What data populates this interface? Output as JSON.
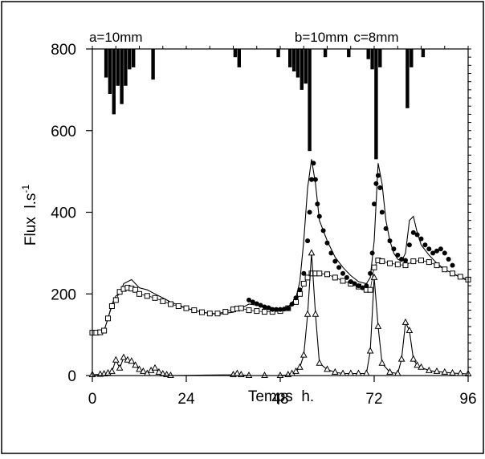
{
  "chart_data": {
    "type": "line",
    "title": "",
    "xlabel": "Temps  h.",
    "ylabel": "Flux  l.s",
    "ylabel_superscript": "-1",
    "xlim": [
      0,
      96
    ],
    "ylim": [
      0,
      800
    ],
    "x_ticks": [
      0,
      24,
      48,
      72,
      96
    ],
    "y_ticks": [
      0,
      200,
      400,
      600,
      800
    ],
    "grid": false,
    "annotations": [
      {
        "text": "a=10mm",
        "x": 6
      },
      {
        "text": "b=10mm",
        "x": 58.5
      },
      {
        "text": "c=8mm",
        "x": 72.5
      }
    ],
    "rain_bars": [
      {
        "x": 3.5,
        "depth": 70
      },
      {
        "x": 4.5,
        "depth": 110
      },
      {
        "x": 5.5,
        "depth": 160
      },
      {
        "x": 6.5,
        "depth": 90
      },
      {
        "x": 7.5,
        "depth": 135
      },
      {
        "x": 8.5,
        "depth": 90
      },
      {
        "x": 9.5,
        "depth": 50
      },
      {
        "x": 10.5,
        "depth": 45
      },
      {
        "x": 15.5,
        "depth": 75
      },
      {
        "x": 36.5,
        "depth": 20
      },
      {
        "x": 37.5,
        "depth": 45
      },
      {
        "x": 47.5,
        "depth": 20
      },
      {
        "x": 50.5,
        "depth": 45
      },
      {
        "x": 51.5,
        "depth": 55
      },
      {
        "x": 52.5,
        "depth": 70
      },
      {
        "x": 53.5,
        "depth": 100
      },
      {
        "x": 54.5,
        "depth": 85
      },
      {
        "x": 55.5,
        "depth": 250
      },
      {
        "x": 59.5,
        "depth": 20
      },
      {
        "x": 65.5,
        "depth": 20
      },
      {
        "x": 70.5,
        "depth": 25
      },
      {
        "x": 71.5,
        "depth": 50
      },
      {
        "x": 72.5,
        "depth": 270
      },
      {
        "x": 73.5,
        "depth": 45
      },
      {
        "x": 80.5,
        "depth": 145
      },
      {
        "x": 81.5,
        "depth": 45
      },
      {
        "x": 84.5,
        "depth": 20
      }
    ],
    "series": [
      {
        "marker": "line",
        "x": [
          0,
          2,
          3,
          4,
          5,
          6,
          7,
          8,
          9,
          10,
          11,
          12,
          14,
          16,
          18,
          20,
          24,
          28,
          32,
          36,
          38,
          40,
          44,
          48,
          50,
          52,
          53,
          54,
          55,
          56,
          57,
          58,
          60,
          62,
          64,
          66,
          68,
          70,
          71,
          72,
          73,
          74,
          75,
          76,
          77,
          78,
          79,
          80,
          81,
          82,
          83,
          84,
          86,
          88,
          90,
          92,
          94,
          96
        ],
        "y": [
          100,
          100,
          110,
          140,
          175,
          195,
          200,
          225,
          230,
          235,
          225,
          215,
          210,
          200,
          190,
          180,
          165,
          155,
          150,
          155,
          165,
          175,
          170,
          162,
          168,
          190,
          230,
          330,
          460,
          530,
          470,
          380,
          330,
          290,
          265,
          245,
          230,
          225,
          240,
          330,
          520,
          470,
          380,
          330,
          300,
          285,
          280,
          300,
          380,
          390,
          350,
          320,
          295,
          275,
          260,
          250,
          240,
          232
        ]
      },
      {
        "marker": "open-square",
        "x": [
          0,
          1,
          2,
          3,
          4,
          5,
          6,
          7,
          8,
          9,
          10,
          11,
          12,
          14,
          16,
          18,
          20,
          22,
          24,
          26,
          28,
          30,
          32,
          34,
          36,
          37,
          38,
          40,
          42,
          44,
          46,
          48,
          50,
          52,
          53,
          54,
          55,
          56,
          57,
          58,
          60,
          62,
          64,
          66,
          68,
          70,
          71,
          72,
          73,
          74,
          76,
          78,
          80,
          82,
          84,
          86,
          88,
          90,
          92,
          94,
          96
        ],
        "y": [
          105,
          105,
          106,
          110,
          140,
          170,
          185,
          205,
          212,
          215,
          213,
          210,
          200,
          195,
          190,
          182,
          175,
          170,
          165,
          160,
          155,
          152,
          152,
          156,
          162,
          164,
          165,
          160,
          158,
          156,
          156,
          158,
          165,
          180,
          200,
          225,
          240,
          250,
          250,
          250,
          248,
          240,
          232,
          225,
          218,
          210,
          210,
          265,
          282,
          280,
          275,
          272,
          270,
          280,
          282,
          278,
          270,
          260,
          250,
          242,
          235
        ]
      },
      {
        "marker": "open-triangle",
        "x": [
          0,
          2,
          3,
          4,
          5,
          6,
          7,
          8,
          9,
          10,
          11,
          12,
          13,
          14,
          15,
          16,
          17,
          18,
          19,
          20,
          36,
          37,
          38,
          40,
          44,
          48,
          50,
          51,
          52,
          53,
          54,
          55,
          56,
          57,
          58,
          60,
          62,
          64,
          66,
          68,
          70,
          71,
          72,
          73,
          74,
          76,
          78,
          79,
          80,
          81,
          82,
          83,
          84,
          86,
          88,
          90,
          92,
          94,
          96
        ],
        "y": [
          2,
          3,
          4,
          6,
          10,
          38,
          18,
          44,
          38,
          35,
          25,
          15,
          10,
          5,
          12,
          18,
          8,
          4,
          2,
          0,
          2,
          5,
          2,
          0,
          0,
          0,
          2,
          5,
          10,
          20,
          50,
          150,
          300,
          150,
          30,
          15,
          8,
          5,
          5,
          5,
          5,
          60,
          240,
          120,
          30,
          8,
          5,
          40,
          130,
          110,
          40,
          25,
          20,
          12,
          10,
          8,
          6,
          5,
          4
        ]
      },
      {
        "marker": "filled-circle",
        "x": [
          40,
          41,
          42,
          43,
          44,
          45,
          46,
          47,
          48,
          49,
          50,
          51,
          52,
          53,
          54,
          55,
          55.5,
          56,
          56.5,
          57,
          57.5,
          58,
          59,
          60,
          61,
          62,
          63,
          64,
          65,
          66,
          67,
          68,
          69,
          70,
          71,
          71.5,
          72,
          72.5,
          73,
          73.5,
          74,
          75,
          76,
          77,
          78,
          79,
          80,
          81,
          82,
          83,
          84,
          85,
          86,
          87,
          88,
          89,
          90,
          91,
          92
        ],
        "y": [
          185,
          180,
          176,
          172,
          168,
          166,
          162,
          162,
          162,
          163,
          165,
          175,
          190,
          210,
          250,
          330,
          400,
          480,
          520,
          480,
          420,
          390,
          355,
          325,
          300,
          280,
          265,
          250,
          240,
          230,
          225,
          220,
          215,
          220,
          250,
          300,
          420,
          470,
          490,
          460,
          400,
          360,
          330,
          310,
          295,
          285,
          282,
          320,
          350,
          345,
          335,
          320,
          310,
          300,
          305,
          310,
          300,
          285,
          270
        ]
      }
    ]
  }
}
